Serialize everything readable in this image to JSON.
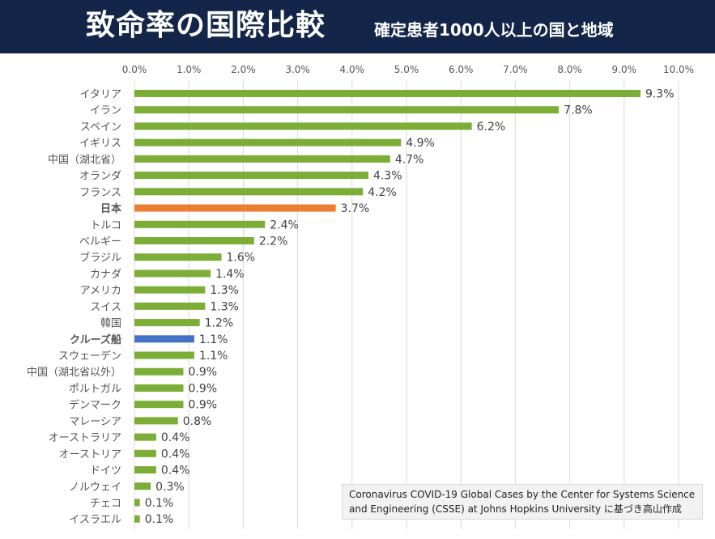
{
  "header": {
    "title": "致命率の国際比較",
    "subtitle": "確定患者1000人以上の国と地域"
  },
  "source": {
    "line1": "Coronavirus COVID-19 Global Cases by the Center for Systems Science",
    "line2": "and Engineering (CSSE) at Johns Hopkins University に基づき高山作成"
  },
  "colors": {
    "header_bg": "#14254a",
    "bar_default": "#7cad36",
    "bar_japan": "#ed7d31",
    "bar_cruise": "#4472c4",
    "label_japan": "#843c0c",
    "label_cruise": "#1f3864"
  },
  "chart_data": {
    "type": "bar",
    "orientation": "horizontal",
    "title": "致命率の国際比較",
    "subtitle": "確定患者1000人以上の国と地域",
    "xlim": [
      0,
      10
    ],
    "x_ticks": [
      "0.0%",
      "1.0%",
      "2.0%",
      "3.0%",
      "4.0%",
      "5.0%",
      "6.0%",
      "7.0%",
      "8.0%",
      "9.0%",
      "10.0%"
    ],
    "x_axis_position": "top",
    "grid": true,
    "legend": "none",
    "categories": [
      "イタリア",
      "イラン",
      "スペイン",
      "イギリス",
      "中国（湖北省）",
      "オランダ",
      "フランス",
      "日本",
      "トルコ",
      "ベルギー",
      "ブラジル",
      "カナダ",
      "アメリカ",
      "スイス",
      "韓国",
      "クルーズ船",
      "スウェーデン",
      "中国（湖北省以外）",
      "ポルトガル",
      "デンマーク",
      "マレーシア",
      "オーストラリア",
      "オーストリア",
      "ドイツ",
      "ノルウェイ",
      "チェコ",
      "イスラエル"
    ],
    "values": [
      9.3,
      7.8,
      6.2,
      4.9,
      4.7,
      4.3,
      4.2,
      3.7,
      2.4,
      2.2,
      1.6,
      1.4,
      1.3,
      1.3,
      1.2,
      1.1,
      1.1,
      0.9,
      0.9,
      0.9,
      0.8,
      0.4,
      0.4,
      0.4,
      0.3,
      0.1,
      0.1
    ],
    "value_labels": [
      "9.3%",
      "7.8%",
      "6.2%",
      "4.9%",
      "4.7%",
      "4.3%",
      "4.2%",
      "3.7%",
      "2.4%",
      "2.2%",
      "1.6%",
      "1.4%",
      "1.3%",
      "1.3%",
      "1.2%",
      "1.1%",
      "1.1%",
      "0.9%",
      "0.9%",
      "0.9%",
      "0.8%",
      "0.4%",
      "0.4%",
      "0.4%",
      "0.3%",
      "0.1%",
      "0.1%"
    ],
    "highlight": {
      "日本": "japan",
      "クルーズ船": "cruise"
    }
  }
}
